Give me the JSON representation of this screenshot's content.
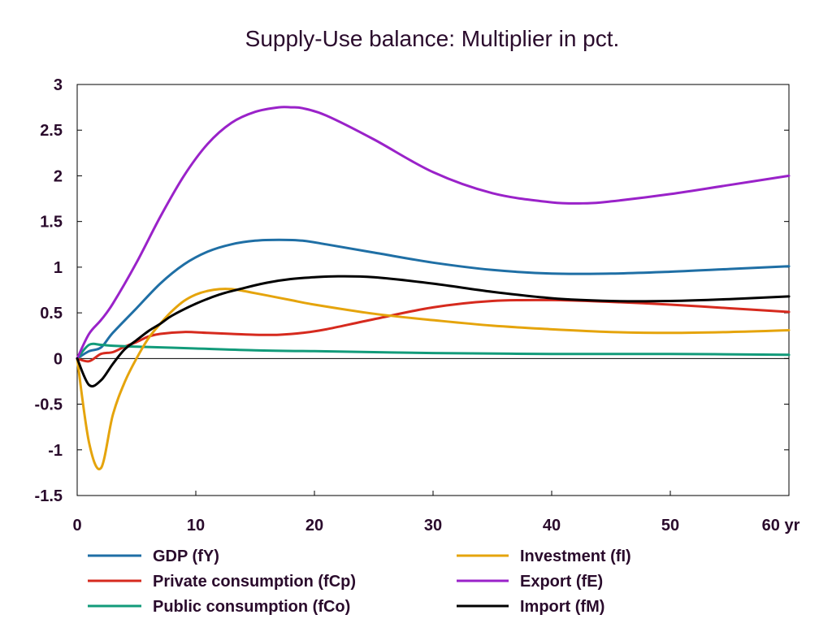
{
  "chart_data": {
    "type": "line",
    "title": "Supply-Use balance: Multiplier in pct.",
    "xlabel": "",
    "ylabel": "",
    "x_ticks": [
      0,
      10,
      20,
      30,
      40,
      50,
      60
    ],
    "x_tick_labels": [
      "0",
      "10",
      "20",
      "30",
      "40",
      "50",
      "60 yr"
    ],
    "y_ticks": [
      3,
      2.5,
      2,
      1.5,
      1,
      0.5,
      0,
      -0.5,
      -1,
      -1.5
    ],
    "y_tick_labels": [
      "3",
      "2.5",
      "2",
      "1.5",
      "1",
      "0.5",
      "0",
      "-0.5",
      "-1",
      "-1.5"
    ],
    "xlim": [
      0,
      60
    ],
    "ylim": [
      -1.5,
      3
    ],
    "grid": false,
    "legend_position": "bottom",
    "series": [
      {
        "name": "GDP (fY)",
        "color": "#1f6fa5",
        "x": [
          0,
          1,
          2,
          3,
          5,
          7,
          9,
          11,
          13,
          15,
          17,
          19,
          21,
          25,
          30,
          35,
          40,
          45,
          50,
          55,
          60
        ],
        "y": [
          0,
          0.08,
          0.12,
          0.28,
          0.55,
          0.82,
          1.03,
          1.17,
          1.25,
          1.29,
          1.3,
          1.29,
          1.25,
          1.16,
          1.05,
          0.97,
          0.93,
          0.93,
          0.95,
          0.98,
          1.01
        ]
      },
      {
        "name": "Private consumption (fCp)",
        "color": "#d62a1e",
        "x": [
          0,
          1,
          2,
          3,
          4,
          5,
          6,
          7,
          9,
          11,
          13,
          15,
          17,
          19,
          21,
          25,
          30,
          35,
          40,
          45,
          50,
          55,
          60
        ],
        "y": [
          0,
          -0.03,
          0.05,
          0.07,
          0.13,
          0.18,
          0.24,
          0.27,
          0.29,
          0.28,
          0.27,
          0.26,
          0.26,
          0.28,
          0.32,
          0.43,
          0.56,
          0.63,
          0.64,
          0.62,
          0.59,
          0.55,
          0.51
        ]
      },
      {
        "name": "Public consumption (fCo)",
        "color": "#129b7a",
        "x": [
          0,
          1,
          2,
          3,
          5,
          10,
          15,
          20,
          25,
          30,
          40,
          50,
          60
        ],
        "y": [
          0,
          0.15,
          0.15,
          0.14,
          0.13,
          0.11,
          0.09,
          0.08,
          0.07,
          0.06,
          0.05,
          0.05,
          0.04
        ]
      },
      {
        "name": "Investment (fI)",
        "color": "#e5a40c",
        "x": [
          0,
          1,
          2,
          3,
          4,
          5,
          6,
          7,
          8,
          9,
          10,
          11,
          12,
          13,
          14,
          16,
          18,
          20,
          25,
          30,
          35,
          40,
          45,
          50,
          55,
          60
        ],
        "y": [
          0,
          -0.92,
          -1.2,
          -0.62,
          -0.26,
          0.0,
          0.22,
          0.38,
          0.52,
          0.63,
          0.7,
          0.74,
          0.76,
          0.76,
          0.74,
          0.69,
          0.64,
          0.59,
          0.49,
          0.42,
          0.36,
          0.32,
          0.29,
          0.28,
          0.29,
          0.31
        ]
      },
      {
        "name": "Export (fE)",
        "color": "#9a22c9",
        "x": [
          0,
          1,
          2,
          3,
          5,
          7,
          9,
          11,
          13,
          15,
          17,
          18,
          19,
          21,
          25,
          30,
          35,
          40,
          43,
          45,
          50,
          55,
          60
        ],
        "y": [
          0,
          0.27,
          0.42,
          0.6,
          1.05,
          1.55,
          2.0,
          2.35,
          2.58,
          2.7,
          2.75,
          2.75,
          2.74,
          2.66,
          2.4,
          2.04,
          1.81,
          1.71,
          1.7,
          1.72,
          1.8,
          1.9,
          2.0
        ]
      },
      {
        "name": "Import (fM)",
        "color": "#000000",
        "x": [
          0,
          1,
          2,
          3,
          4,
          5,
          6,
          7,
          8,
          10,
          12,
          14,
          16,
          18,
          20,
          22,
          25,
          30,
          35,
          40,
          45,
          50,
          55,
          60
        ],
        "y": [
          0,
          -0.29,
          -0.24,
          -0.06,
          0.1,
          0.2,
          0.3,
          0.38,
          0.47,
          0.6,
          0.7,
          0.77,
          0.83,
          0.87,
          0.89,
          0.9,
          0.89,
          0.82,
          0.73,
          0.66,
          0.63,
          0.63,
          0.65,
          0.68
        ]
      }
    ]
  }
}
